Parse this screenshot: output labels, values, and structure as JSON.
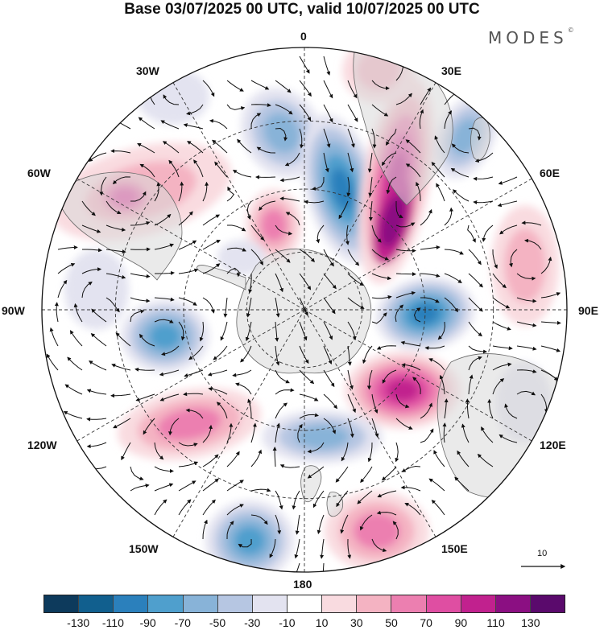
{
  "header": {
    "title": "Base 03/07/2025 00 UTC, valid 10/07/2025 00 UTC",
    "brand": "MODES",
    "brand_mark": "©"
  },
  "map": {
    "projection": "south-polar-stereographic",
    "center": "South Pole",
    "longitude_labels": {
      "lon_0": "0",
      "lon_30E": "30E",
      "lon_60E": "60E",
      "lon_90E": "90E",
      "lon_120E": "120E",
      "lon_150E": "150E",
      "lon_180": "180",
      "lon_150W": "150W",
      "lon_120W": "120W",
      "lon_90W": "90W",
      "lon_60W": "60W",
      "lon_30W": "30W"
    },
    "graticule": "dashed",
    "vectors": "wind streamlines with arrowheads",
    "reference_vector": "10"
  },
  "colorbar": {
    "ticks": [
      "-130",
      "-110",
      "-90",
      "-70",
      "-50",
      "-30",
      "-10",
      "10",
      "30",
      "50",
      "70",
      "90",
      "110",
      "130"
    ],
    "colors": [
      "#0d3a5c",
      "#115f8e",
      "#2b80bc",
      "#4f9fcd",
      "#88b3d8",
      "#b6c6e2",
      "#e3e3f0",
      "#ffffff",
      "#f9dbe0",
      "#f4b3c2",
      "#ec7fb0",
      "#df4ea2",
      "#c1218e",
      "#8b0f82",
      "#5a0a6c"
    ]
  },
  "colors": {
    "land": "#d9d9d9",
    "coastline": "#666666",
    "text": "#111111"
  }
}
